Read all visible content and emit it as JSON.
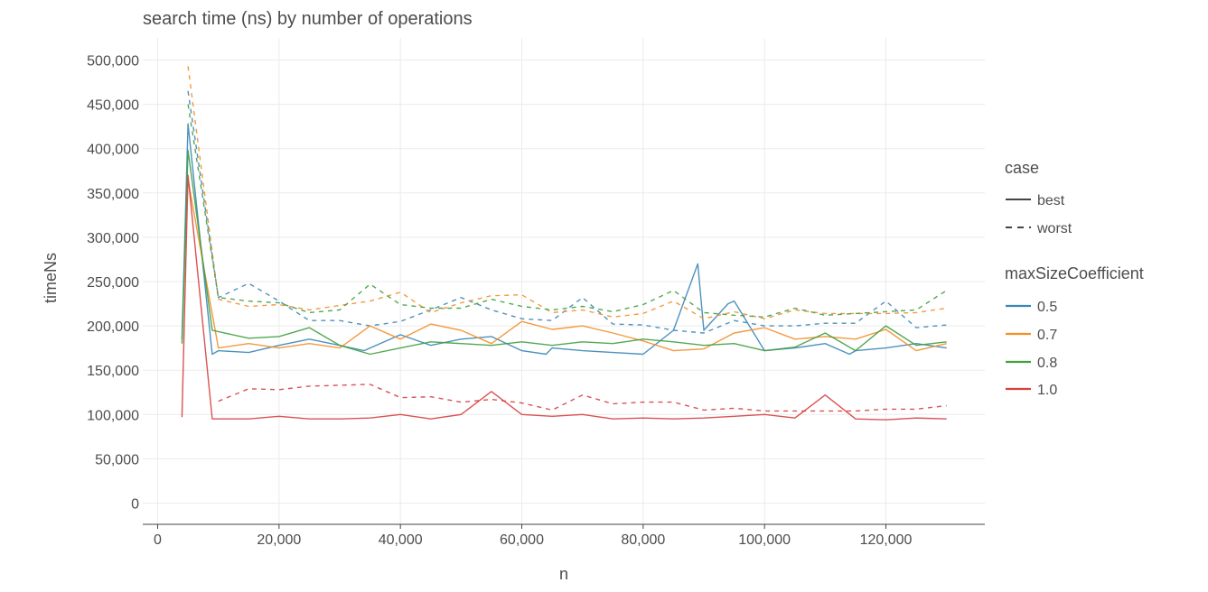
{
  "chart_data": {
    "type": "line",
    "title": "search time (ns) by number of operations",
    "xlabel": "n",
    "ylabel": "timeNs",
    "xlim": [
      -2500,
      136000
    ],
    "ylim": [
      -25000,
      525000
    ],
    "xticks": [
      0,
      20000,
      40000,
      60000,
      80000,
      100000,
      120000
    ],
    "xtick_labels": [
      "0",
      "20,000",
      "40,000",
      "60,000",
      "80,000",
      "100,000",
      "120,000"
    ],
    "yticks": [
      0,
      50000,
      100000,
      150000,
      200000,
      250000,
      300000,
      350000,
      400000,
      450000,
      500000
    ],
    "ytick_labels": [
      "0",
      "50,000",
      "100,000",
      "150,000",
      "200,000",
      "250,000",
      "300,000",
      "350,000",
      "400,000",
      "450,000",
      "500,000"
    ],
    "grid": true,
    "legend_position": "right",
    "legends": [
      {
        "title": "case",
        "entries": [
          {
            "label": "best",
            "dash": "solid"
          },
          {
            "label": "worst",
            "dash": "dashed"
          }
        ]
      },
      {
        "title": "maxSizeCoefficient",
        "entries": [
          {
            "label": "0.5",
            "color": "#3a86b6"
          },
          {
            "label": "0.7",
            "color": "#f28e2b"
          },
          {
            "label": "0.8",
            "color": "#3f9f3f"
          },
          {
            "label": "1.0",
            "color": "#d64040"
          }
        ]
      }
    ],
    "series": [
      {
        "coefficient": "0.5",
        "case": "best",
        "color": "#3a86b6",
        "dash": "solid",
        "x": [
          4000,
          5000,
          9000,
          10000,
          15000,
          20000,
          25000,
          30000,
          34000,
          35000,
          40000,
          45000,
          50000,
          55000,
          60000,
          64000,
          65000,
          70000,
          75000,
          80000,
          85000,
          89000,
          90000,
          94000,
          95000,
          100000,
          105000,
          110000,
          114000,
          115000,
          120000,
          125000,
          130000
        ],
        "y": [
          185000,
          428000,
          168000,
          172000,
          170000,
          178000,
          185000,
          178000,
          172000,
          175000,
          190000,
          178000,
          185000,
          188000,
          172000,
          168000,
          175000,
          172000,
          170000,
          168000,
          195000,
          270000,
          195000,
          225000,
          228000,
          172000,
          175000,
          180000,
          168000,
          172000,
          175000,
          180000,
          175000
        ]
      },
      {
        "coefficient": "0.5",
        "case": "worst",
        "color": "#3a86b6",
        "dash": "dashed",
        "x": [
          5000,
          10000,
          15000,
          20000,
          25000,
          30000,
          35000,
          40000,
          45000,
          50000,
          55000,
          60000,
          65000,
          70000,
          75000,
          80000,
          85000,
          90000,
          95000,
          100000,
          105000,
          110000,
          115000,
          120000,
          125000,
          130000
        ],
        "y": [
          465000,
          232000,
          248000,
          228000,
          206000,
          206000,
          200000,
          205000,
          218000,
          232000,
          218000,
          208000,
          206000,
          232000,
          202000,
          201000,
          195000,
          192000,
          206000,
          200000,
          200000,
          203000,
          203000,
          228000,
          198000,
          201000
        ]
      },
      {
        "coefficient": "0.7",
        "case": "best",
        "color": "#f28e2b",
        "dash": "solid",
        "x": [
          5000,
          10000,
          15000,
          20000,
          25000,
          30000,
          35000,
          40000,
          45000,
          50000,
          55000,
          60000,
          65000,
          70000,
          75000,
          80000,
          85000,
          90000,
          95000,
          100000,
          105000,
          110000,
          115000,
          120000,
          125000,
          130000
        ],
        "y": [
          365000,
          175000,
          180000,
          175000,
          180000,
          175000,
          200000,
          185000,
          202000,
          195000,
          180000,
          205000,
          196000,
          200000,
          192000,
          183000,
          172000,
          174000,
          192000,
          198000,
          185000,
          188000,
          185000,
          196000,
          172000,
          180000
        ]
      },
      {
        "coefficient": "0.7",
        "case": "worst",
        "color": "#f28e2b",
        "dash": "dashed",
        "x": [
          5000,
          10000,
          15000,
          20000,
          25000,
          30000,
          35000,
          40000,
          45000,
          50000,
          55000,
          60000,
          65000,
          70000,
          75000,
          80000,
          85000,
          90000,
          95000,
          100000,
          105000,
          110000,
          115000,
          120000,
          125000,
          130000
        ],
        "y": [
          493000,
          230000,
          222000,
          224000,
          218000,
          223000,
          228000,
          238000,
          215000,
          226000,
          234000,
          235000,
          215000,
          218000,
          210000,
          214000,
          228000,
          208000,
          216000,
          208000,
          218000,
          214000,
          214000,
          214000,
          215000,
          220000
        ]
      },
      {
        "coefficient": "0.8",
        "case": "best",
        "color": "#3f9f3f",
        "dash": "solid",
        "x": [
          4000,
          5000,
          9000,
          15000,
          20000,
          25000,
          30000,
          35000,
          40000,
          45000,
          50000,
          55000,
          60000,
          65000,
          70000,
          75000,
          80000,
          85000,
          90000,
          95000,
          100000,
          105000,
          110000,
          115000,
          120000,
          125000,
          130000
        ],
        "y": [
          180000,
          398000,
          195000,
          186000,
          188000,
          198000,
          178000,
          168000,
          175000,
          182000,
          180000,
          178000,
          182000,
          178000,
          182000,
          180000,
          185000,
          182000,
          178000,
          180000,
          172000,
          176000,
          192000,
          172000,
          200000,
          178000,
          182000
        ]
      },
      {
        "coefficient": "0.8",
        "case": "worst",
        "color": "#3f9f3f",
        "dash": "dashed",
        "x": [
          5000,
          10000,
          15000,
          20000,
          25000,
          30000,
          35000,
          40000,
          45000,
          50000,
          55000,
          60000,
          65000,
          70000,
          75000,
          80000,
          85000,
          90000,
          95000,
          100000,
          105000,
          110000,
          115000,
          120000,
          125000,
          130000
        ],
        "y": [
          450000,
          232000,
          228000,
          226000,
          215000,
          218000,
          247000,
          224000,
          220000,
          220000,
          230000,
          222000,
          218000,
          222000,
          216000,
          224000,
          240000,
          215000,
          212000,
          210000,
          220000,
          212000,
          214000,
          216000,
          218000,
          240000
        ]
      },
      {
        "coefficient": "1.0",
        "case": "best",
        "color": "#d64040",
        "dash": "solid",
        "x": [
          4000,
          5000,
          9000,
          15000,
          20000,
          25000,
          30000,
          35000,
          40000,
          45000,
          50000,
          55000,
          60000,
          65000,
          70000,
          75000,
          80000,
          85000,
          90000,
          95000,
          100000,
          105000,
          110000,
          115000,
          120000,
          125000,
          130000
        ],
        "y": [
          97000,
          370000,
          95000,
          95000,
          98000,
          95000,
          95000,
          96000,
          100000,
          95000,
          100000,
          126000,
          100000,
          98000,
          100000,
          95000,
          96000,
          95000,
          96000,
          98000,
          100000,
          96000,
          122000,
          95000,
          94000,
          96000,
          95000
        ]
      },
      {
        "coefficient": "1.0",
        "case": "worst",
        "color": "#d64040",
        "dash": "dashed",
        "x": [
          10000,
          15000,
          20000,
          25000,
          30000,
          35000,
          40000,
          45000,
          50000,
          55000,
          60000,
          65000,
          70000,
          75000,
          80000,
          85000,
          90000,
          95000,
          100000,
          105000,
          110000,
          115000,
          120000,
          125000,
          130000
        ],
        "y": [
          115000,
          129000,
          128000,
          132000,
          133000,
          134000,
          119000,
          120000,
          114000,
          117000,
          113000,
          105000,
          122000,
          112000,
          114000,
          114000,
          105000,
          107000,
          104000,
          104000,
          104000,
          104000,
          106000,
          106000,
          110000
        ]
      }
    ]
  }
}
